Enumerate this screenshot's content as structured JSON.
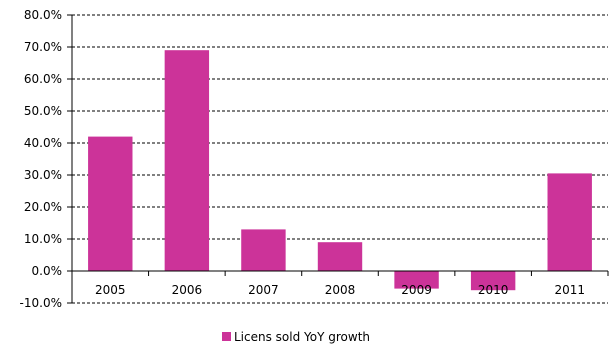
{
  "chart_data": {
    "type": "bar",
    "categories": [
      "2005",
      "2006",
      "2007",
      "2008",
      "2009",
      "2010",
      "2011"
    ],
    "series": [
      {
        "name": "Licens sold YoY growth",
        "values": [
          42.0,
          69.0,
          13.0,
          9.0,
          -5.5,
          -6.0,
          30.5
        ],
        "color": "#cc3399"
      }
    ],
    "ylim": [
      -10,
      80
    ],
    "yticks": [
      "80.0%",
      "70.0%",
      "60.0%",
      "50.0%",
      "40.0%",
      "30.0%",
      "20.0%",
      "10.0%",
      "0.0%",
      "-10.0%"
    ],
    "grid": true,
    "legend_position": "bottom"
  }
}
